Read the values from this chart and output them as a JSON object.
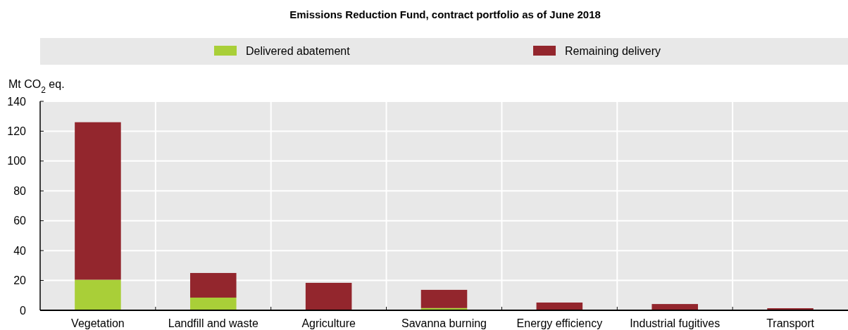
{
  "chart_data": {
    "type": "bar",
    "title": "Emissions Reduction Fund, contract portfolio as of June 2018",
    "ylabel": "Mt CO$_{2}$ eq.",
    "categories": [
      "Vegetation",
      "Landfill and waste",
      "Agriculture",
      "Savanna burning",
      "Energy efficiency",
      "Industrial fugitives",
      "Transport"
    ],
    "series": [
      {
        "name": "Delivered abatement",
        "color": "#a9cf38",
        "values": [
          20.5,
          8.5,
          0,
          1.5,
          0,
          0,
          0
        ]
      },
      {
        "name": "Remaining delivery",
        "color": "#93262d",
        "values": [
          105.5,
          16.5,
          18.4,
          12.2,
          5.2,
          4.2,
          1.4
        ]
      }
    ],
    "stacked": true,
    "ylim": [
      0,
      140
    ],
    "yticks": [
      0,
      20,
      40,
      60,
      80,
      100,
      120,
      140
    ],
    "grid": true,
    "legend": "top"
  }
}
